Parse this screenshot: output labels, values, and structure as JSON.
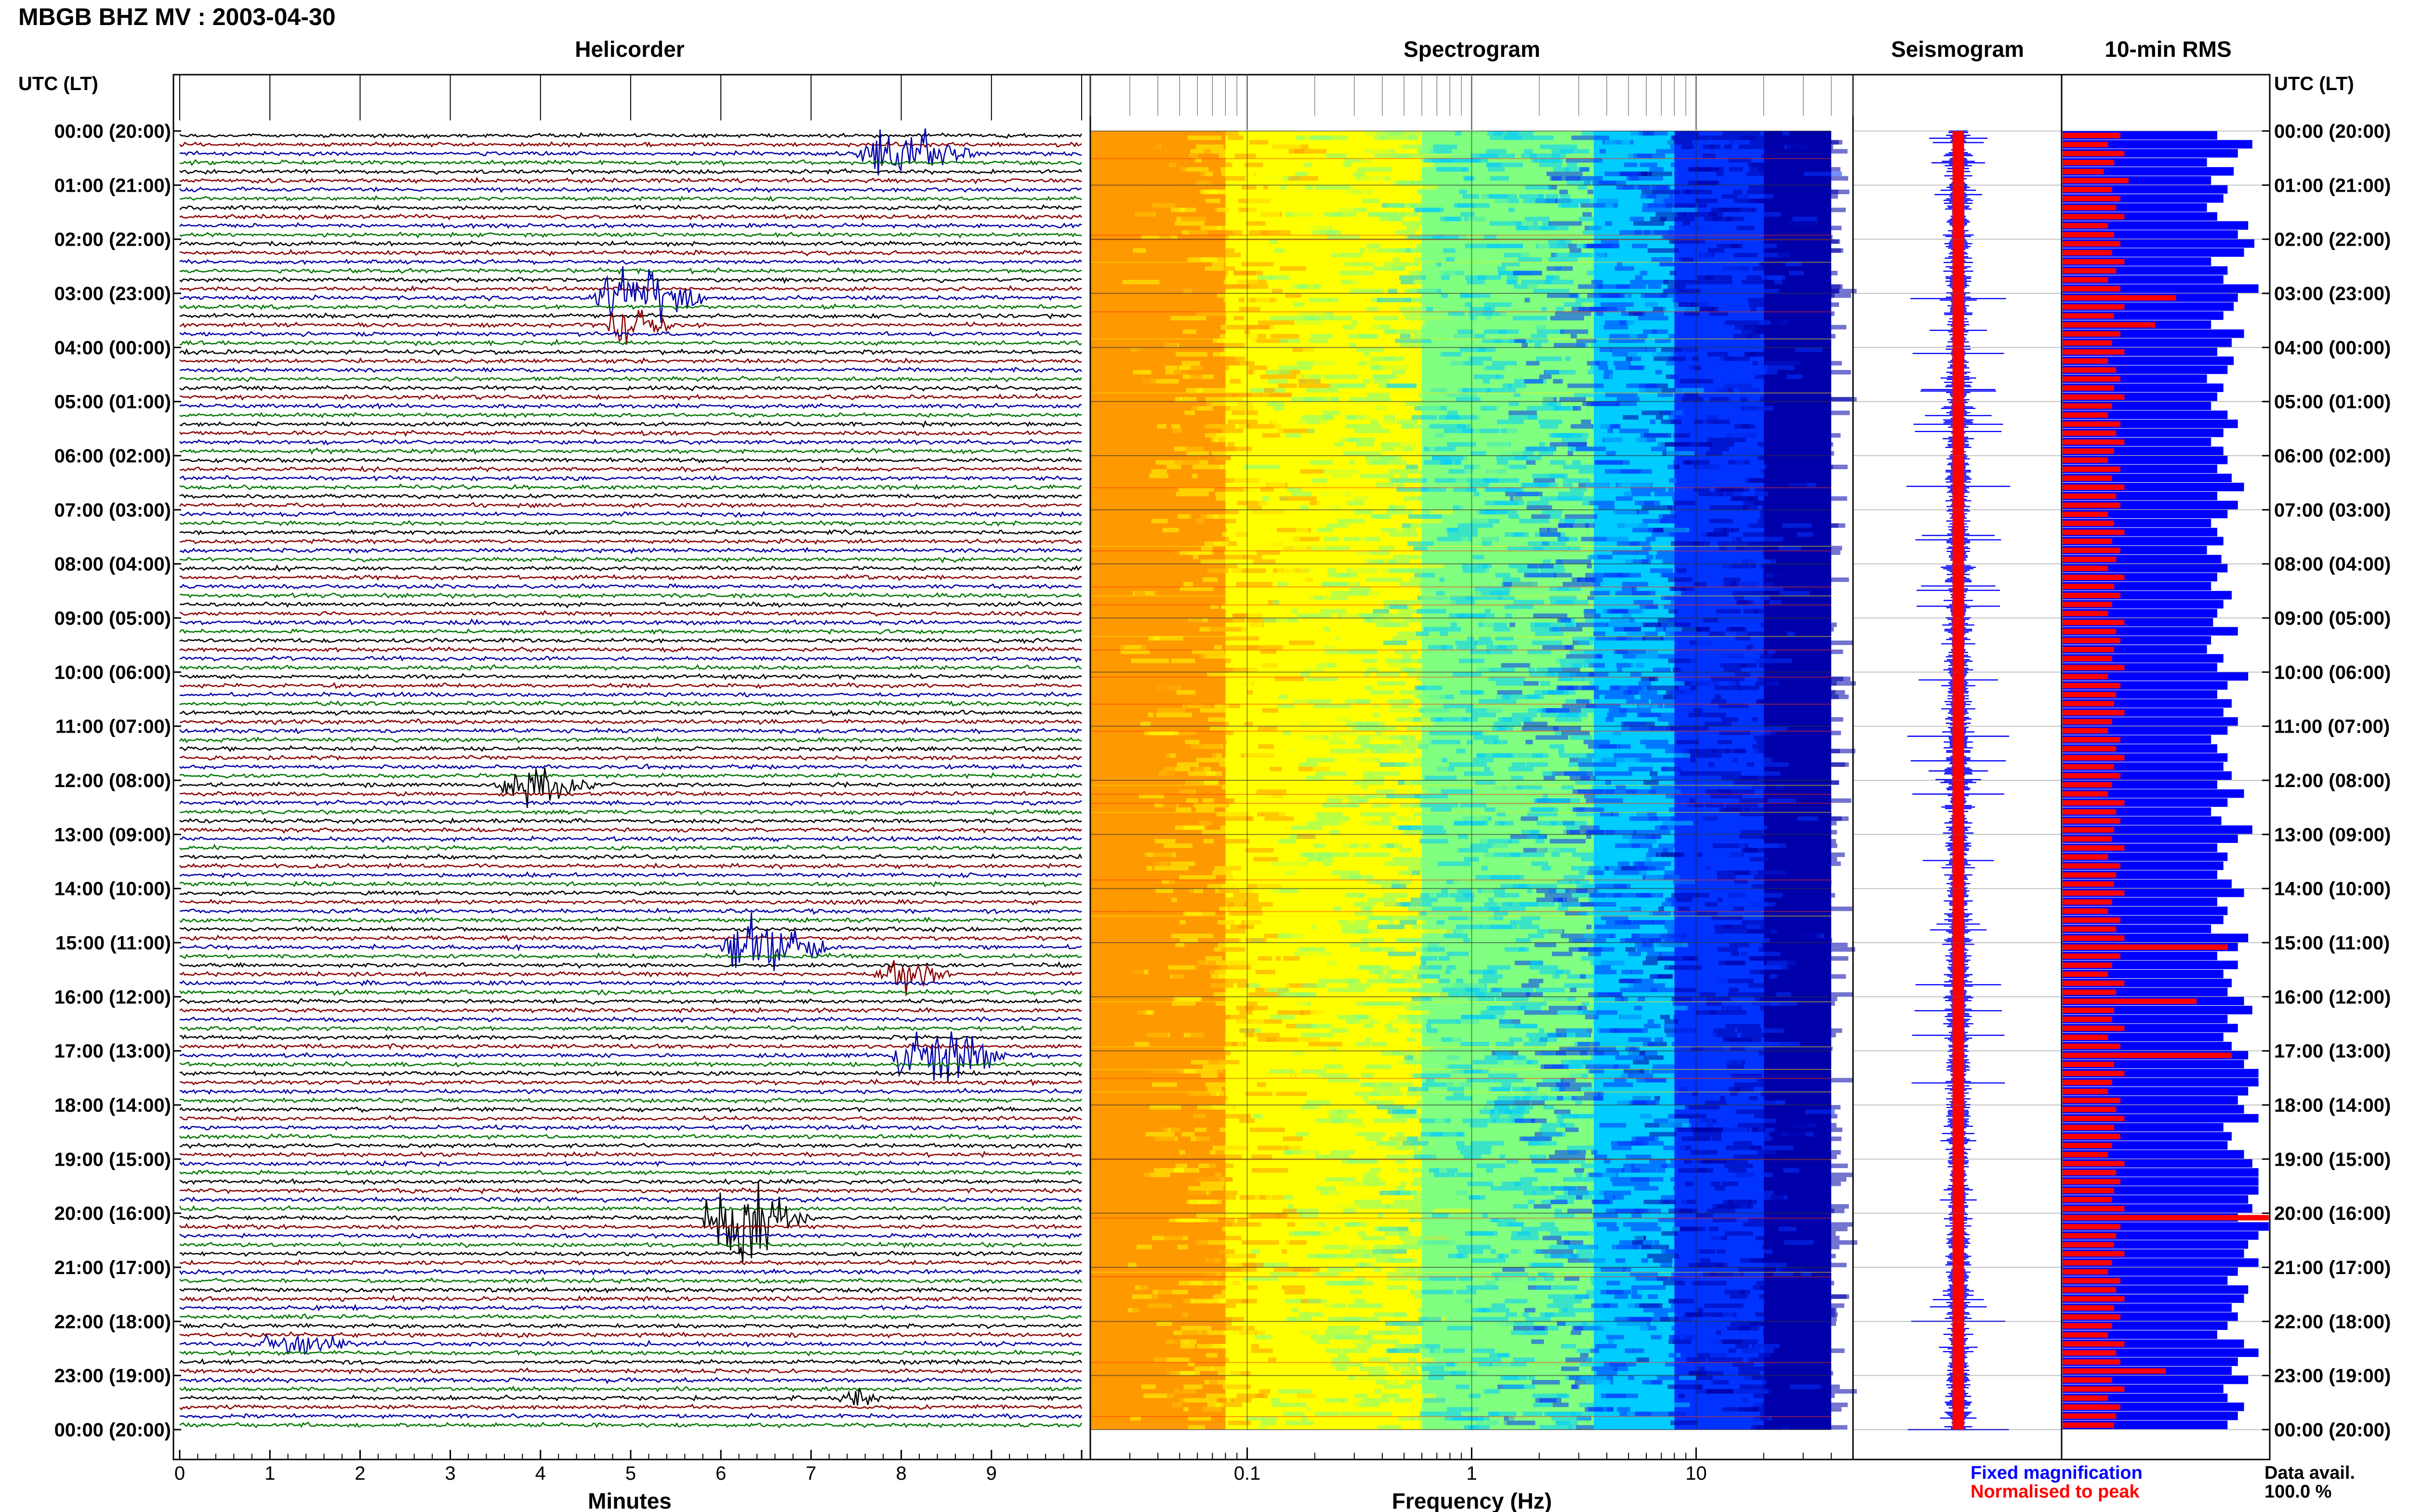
{
  "header": {
    "title": "MBGB BHZ MV : 2003-04-30",
    "utc_label": "UTC (LT)"
  },
  "panels": {
    "helicorder": "Helicorder",
    "spectrogram": "Spectrogram",
    "seismogram": "Seismogram",
    "rms": "10-min RMS"
  },
  "legend": {
    "fixed": "Fixed magnification",
    "normalised": "Normalised to peak",
    "fixed_color": "#0000ff",
    "normalised_color": "#ff0000"
  },
  "data_avail": {
    "label": "Data avail.",
    "value": "100.0 %"
  },
  "colors": {
    "trace_cycle": [
      "#000000",
      "#8b0000",
      "#0000aa",
      "#007700"
    ],
    "spectrogram_scale": [
      "#ff9900",
      "#ffff00",
      "#80ff80",
      "#00ccff",
      "#0033ff",
      "#0000aa"
    ]
  },
  "chart_data": [
    {
      "type": "line",
      "panel": "helicorder",
      "title": "Helicorder",
      "xlabel": "Minutes",
      "xlim": [
        0,
        10
      ],
      "x_ticks": [
        "0",
        "1",
        "2",
        "3",
        "4",
        "5",
        "6",
        "7",
        "8",
        "9"
      ],
      "row_labels": [
        "00:00 (20:00)",
        "01:00 (21:00)",
        "02:00 (22:00)",
        "03:00 (23:00)",
        "04:00 (00:00)",
        "05:00 (01:00)",
        "06:00 (02:00)",
        "07:00 (03:00)",
        "08:00 (04:00)",
        "09:00 (05:00)",
        "10:00 (06:00)",
        "11:00 (07:00)",
        "12:00 (08:00)",
        "13:00 (09:00)",
        "14:00 (10:00)",
        "15:00 (11:00)",
        "16:00 (12:00)",
        "17:00 (13:00)",
        "18:00 (14:00)",
        "19:00 (15:00)",
        "20:00 (16:00)",
        "21:00 (17:00)",
        "22:00 (18:00)",
        "23:00 (19:00)",
        "00:00 (20:00)"
      ],
      "events": [
        {
          "hour": 0.3,
          "start_min": 7.5,
          "end_min": 8.9,
          "amp": 3.0
        },
        {
          "hour": 3.0,
          "start_min": 4.6,
          "end_min": 5.9,
          "amp": 3.5
        },
        {
          "hour": 3.5,
          "start_min": 4.7,
          "end_min": 5.5,
          "amp": 2.0
        },
        {
          "hour": 12.0,
          "start_min": 3.5,
          "end_min": 4.6,
          "amp": 2.2
        },
        {
          "hour": 15.0,
          "start_min": 6.0,
          "end_min": 7.3,
          "amp": 3.5
        },
        {
          "hour": 15.5,
          "start_min": 7.7,
          "end_min": 8.6,
          "amp": 1.8
        },
        {
          "hour": 17.0,
          "start_min": 7.9,
          "end_min": 9.2,
          "amp": 3.5
        },
        {
          "hour": 20.0,
          "start_min": 5.8,
          "end_min": 7.0,
          "amp": 4.5
        },
        {
          "hour": 22.3,
          "start_min": 0.9,
          "end_min": 2.0,
          "amp": 1.4
        },
        {
          "hour": 23.3,
          "start_min": 7.3,
          "end_min": 7.9,
          "amp": 1.2
        }
      ]
    },
    {
      "type": "heatmap",
      "panel": "spectrogram",
      "title": "Spectrogram",
      "xlabel": "Frequency (Hz)",
      "x_scale": "log",
      "xlim": [
        0.02,
        50
      ],
      "x_ticks": [
        "0.1",
        "1",
        "10"
      ],
      "ylim_hours": [
        0,
        24
      ],
      "band_edges_hz": [
        0.08,
        0.6,
        3.5,
        8,
        20,
        40
      ]
    },
    {
      "type": "line",
      "panel": "seismogram",
      "title": "Seismogram",
      "ylim_hours": [
        0,
        24
      ]
    },
    {
      "type": "bar",
      "panel": "rms",
      "title": "10-min RMS",
      "orientation": "horizontal",
      "ylim_hours": [
        0,
        24
      ],
      "series": [
        {
          "name": "Fixed magnification",
          "color": "#0000ff"
        },
        {
          "name": "Normalised to peak",
          "color": "#ff0000"
        }
      ],
      "fixed_magnification": [
        0.75,
        0.92,
        0.85,
        0.7,
        0.83,
        0.72,
        0.8,
        0.78,
        0.7,
        0.75,
        0.9,
        0.85,
        0.93,
        0.88,
        0.72,
        0.8,
        0.78,
        0.95,
        0.85,
        0.83,
        0.78,
        0.72,
        0.88,
        0.82,
        0.75,
        0.83,
        0.8,
        0.7,
        0.78,
        0.75,
        0.72,
        0.8,
        0.85,
        0.78,
        0.72,
        0.78,
        0.8,
        0.75,
        0.82,
        0.88,
        0.75,
        0.85,
        0.8,
        0.72,
        0.75,
        0.78,
        0.7,
        0.77,
        0.8,
        0.75,
        0.72,
        0.82,
        0.78,
        0.75,
        0.73,
        0.85,
        0.72,
        0.7,
        0.78,
        0.75,
        0.9,
        0.8,
        0.75,
        0.82,
        0.78,
        0.85,
        0.8,
        0.72,
        0.75,
        0.8,
        0.78,
        0.82,
        0.75,
        0.88,
        0.8,
        0.72,
        0.77,
        0.92,
        0.85,
        0.75,
        0.8,
        0.78,
        0.75,
        0.82,
        0.88,
        0.75,
        0.8,
        0.78,
        0.72,
        0.9,
        0.85,
        0.75,
        0.85,
        0.78,
        0.82,
        0.8,
        0.88,
        0.92,
        0.8,
        0.85,
        0.78,
        0.82,
        0.9,
        0.88,
        0.95,
        0.95,
        0.9,
        0.85,
        0.88,
        0.95,
        0.78,
        0.82,
        0.8,
        0.88,
        0.92,
        0.95,
        0.95,
        0.95,
        0.9,
        0.92,
        0.85,
        1.0,
        0.95,
        0.9,
        0.88,
        0.95,
        0.85,
        0.8,
        0.9,
        0.88,
        0.82,
        0.85,
        0.8,
        0.75,
        0.88,
        0.95,
        0.85,
        0.82,
        0.9,
        0.78,
        0.8,
        0.88,
        0.85,
        0.8
      ],
      "normalised_to_peak": [
        0.28,
        0.22,
        0.3,
        0.25,
        0.2,
        0.32,
        0.24,
        0.28,
        0.26,
        0.3,
        0.22,
        0.25,
        0.28,
        0.24,
        0.3,
        0.26,
        0.22,
        0.28,
        0.55,
        0.3,
        0.25,
        0.45,
        0.28,
        0.24,
        0.3,
        0.22,
        0.26,
        0.28,
        0.25,
        0.3,
        0.24,
        0.22,
        0.28,
        0.26,
        0.3,
        0.25,
        0.22,
        0.28,
        0.24,
        0.3,
        0.26,
        0.28,
        0.22,
        0.25,
        0.3,
        0.24,
        0.28,
        0.26,
        0.22,
        0.3,
        0.25,
        0.28,
        0.24,
        0.22,
        0.3,
        0.26,
        0.28,
        0.25,
        0.24,
        0.3,
        0.22,
        0.28,
        0.26,
        0.25,
        0.3,
        0.24,
        0.22,
        0.28,
        0.26,
        0.3,
        0.25,
        0.28,
        0.24,
        0.22,
        0.3,
        0.26,
        0.28,
        0.25,
        0.24,
        0.3,
        0.22,
        0.28,
        0.26,
        0.25,
        0.3,
        0.24,
        0.22,
        0.28,
        0.26,
        0.3,
        0.8,
        0.28,
        0.24,
        0.22,
        0.3,
        0.26,
        0.65,
        0.25,
        0.24,
        0.3,
        0.22,
        0.28,
        0.82,
        0.25,
        0.3,
        0.24,
        0.22,
        0.28,
        0.26,
        0.3,
        0.25,
        0.28,
        0.24,
        0.22,
        0.3,
        0.26,
        0.28,
        0.25,
        0.24,
        0.3,
        1.0,
        0.28,
        0.26,
        0.25,
        0.3,
        0.24,
        0.22,
        0.28,
        0.26,
        0.3,
        0.25,
        0.28,
        0.24,
        0.22,
        0.3,
        0.26,
        0.28,
        0.5,
        0.24,
        0.3,
        0.22,
        0.28,
        0.26,
        0.25
      ]
    }
  ]
}
